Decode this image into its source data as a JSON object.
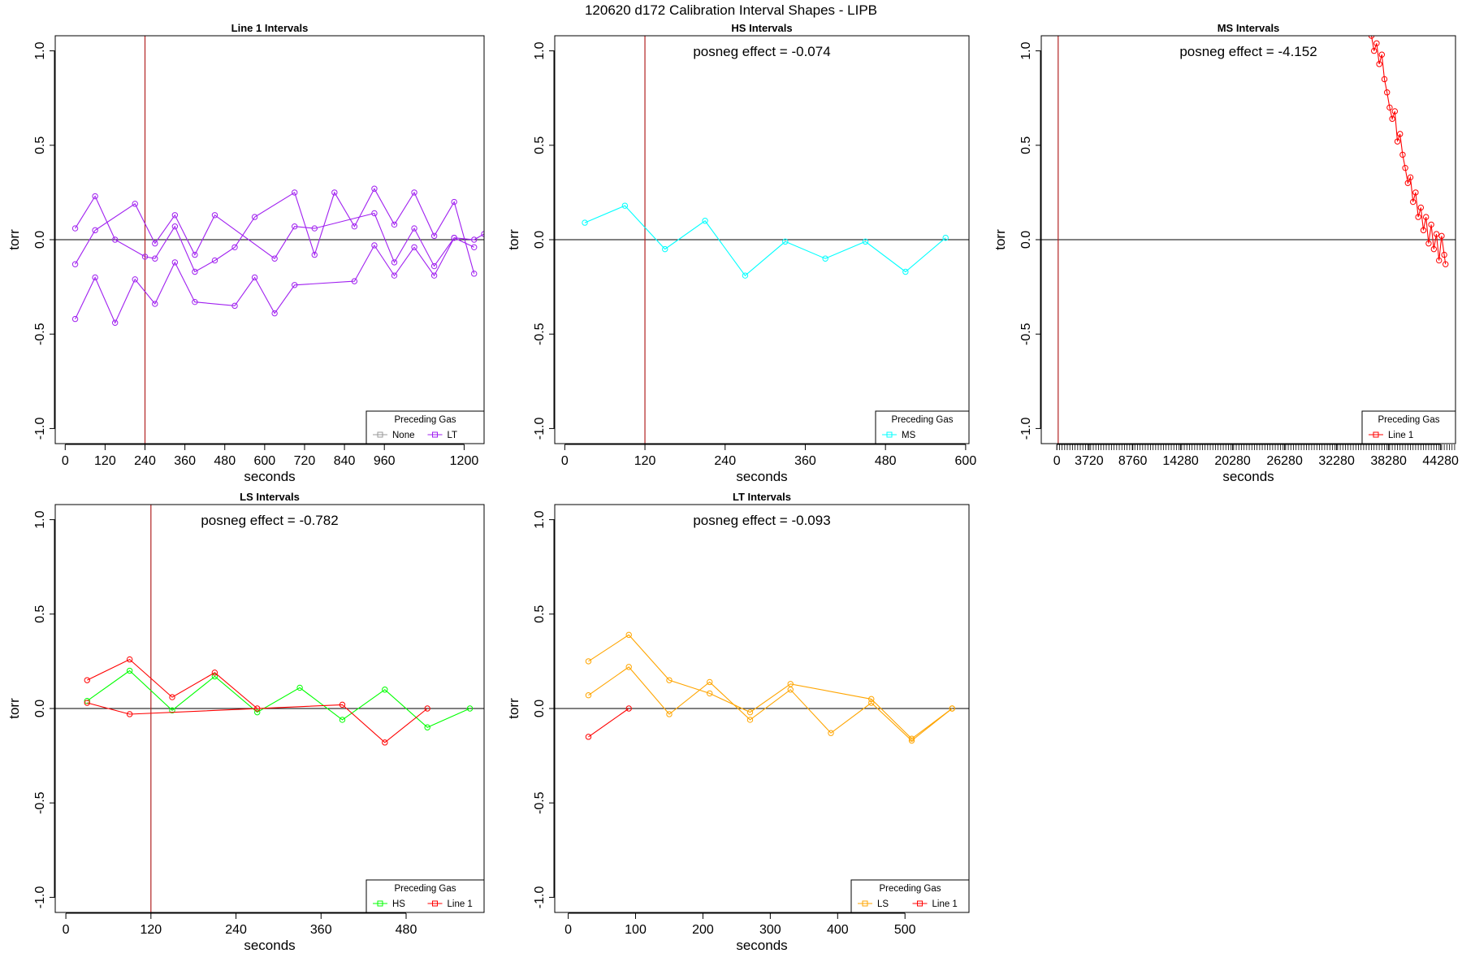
{
  "figure_title": "120620   d172   Calibration Interval Shapes - LIPB",
  "colors": {
    "vline": "#b22222",
    "zero_line": "#000000",
    "none": "#999999",
    "lt": "#a020f0",
    "ms": "#00ffff",
    "line1": "#ff0000",
    "hs": "#00ff00",
    "ls": "#ffa500"
  },
  "chart_data": [
    {
      "id": "line1",
      "type": "line",
      "title": "Line 1 Intervals",
      "xlabel": "seconds",
      "ylabel": "torr",
      "xlim": [
        -30,
        1260
      ],
      "ylim": [
        -1.08,
        1.08
      ],
      "xticks": [
        0,
        120,
        240,
        360,
        480,
        600,
        720,
        840,
        960,
        1200
      ],
      "yticks": [
        -1.0,
        -0.5,
        0.0,
        0.5,
        1.0
      ],
      "ytick_labels": [
        "-1.0",
        "-0.5",
        "0.0",
        "0.5",
        "1.0"
      ],
      "vline_x": 240,
      "annotation": "",
      "legend_title": "Preceding Gas",
      "legend_entries": [
        {
          "label": "None",
          "color": "#999999"
        },
        {
          "label": "LT",
          "color": "#a020f0"
        }
      ],
      "series": [
        {
          "name": "LT",
          "color": "#a020f0",
          "x": [
            30,
            90,
            150,
            240,
            270,
            330,
            390,
            450,
            510,
            570,
            690,
            750,
            810,
            870,
            930,
            990,
            1050,
            1110,
            1170,
            1230
          ],
          "y": [
            0.06,
            0.23,
            0.0,
            -0.09,
            -0.1,
            0.07,
            -0.17,
            -0.11,
            -0.04,
            0.12,
            0.25,
            -0.08,
            0.25,
            0.07,
            0.27,
            0.08,
            0.25,
            0.02,
            0.2,
            -0.18
          ]
        },
        {
          "name": "LT",
          "color": "#a020f0",
          "x": [
            30,
            90,
            210,
            270,
            330,
            390,
            450,
            630,
            690,
            750,
            930,
            990,
            1050,
            1110,
            1170,
            1230,
            1260
          ],
          "y": [
            -0.13,
            0.05,
            0.19,
            -0.02,
            0.13,
            -0.08,
            0.13,
            -0.1,
            0.07,
            0.06,
            0.14,
            -0.12,
            0.06,
            -0.14,
            0.01,
            0.0,
            0.03
          ]
        },
        {
          "name": "LT",
          "color": "#a020f0",
          "x": [
            30,
            90,
            150,
            210,
            270,
            330,
            390,
            510,
            570,
            630,
            690,
            870,
            930,
            990,
            1050,
            1110,
            1170,
            1230
          ],
          "y": [
            -0.42,
            -0.2,
            -0.44,
            -0.21,
            -0.34,
            -0.12,
            -0.33,
            -0.35,
            -0.2,
            -0.39,
            -0.24,
            -0.22,
            -0.03,
            -0.19,
            -0.04,
            -0.19,
            0.01,
            -0.04
          ]
        }
      ]
    },
    {
      "id": "hs",
      "type": "line",
      "title": "HS Intervals",
      "xlabel": "seconds",
      "ylabel": "torr",
      "xlim": [
        -15,
        605
      ],
      "ylim": [
        -1.08,
        1.08
      ],
      "xticks": [
        0,
        120,
        240,
        360,
        480,
        600
      ],
      "yticks": [
        -1.0,
        -0.5,
        0.0,
        0.5,
        1.0
      ],
      "ytick_labels": [
        "-1.0",
        "-0.5",
        "0.0",
        "0.5",
        "1.0"
      ],
      "vline_x": 120,
      "annotation": "posneg effect = -0.074",
      "legend_title": "Preceding Gas",
      "legend_entries": [
        {
          "label": "MS",
          "color": "#00ffff"
        }
      ],
      "series": [
        {
          "name": "MS",
          "color": "#00ffff",
          "x": [
            30,
            90,
            150,
            210,
            270,
            330,
            390,
            450,
            510,
            570
          ],
          "y": [
            0.09,
            0.18,
            -0.05,
            0.1,
            -0.19,
            -0.01,
            -0.1,
            -0.01,
            -0.17,
            0.01
          ]
        }
      ]
    },
    {
      "id": "ms",
      "type": "line",
      "title": "MS Intervals",
      "xlabel": "seconds",
      "ylabel": "torr",
      "xlim": [
        -1800,
        46000
      ],
      "ylim": [
        -1.08,
        1.08
      ],
      "xticks": [
        0,
        3720,
        8760,
        14280,
        20280,
        26280,
        32280,
        38280,
        44280
      ],
      "yticks": [
        -1.0,
        -0.5,
        0.0,
        0.5,
        1.0
      ],
      "ytick_labels": [
        "-1.0",
        "-0.5",
        "0.0",
        "0.5",
        "1.0"
      ],
      "minor_tick_step": 300,
      "vline_x": 150,
      "annotation": "posneg effect = -4.152",
      "legend_title": "Preceding Gas",
      "legend_entries": [
        {
          "label": "Line 1",
          "color": "#ff0000"
        }
      ],
      "series": [
        {
          "name": "Line 1",
          "color": "#ff0000",
          "x": [
            36300,
            36600,
            36900,
            37200,
            37500,
            37800,
            38100,
            38400,
            38700,
            39000,
            39300,
            39600,
            39900,
            40200,
            40500,
            40800,
            41100,
            41400,
            41700,
            42000,
            42300,
            42600,
            42900,
            43200,
            43500,
            43800,
            44100,
            44400,
            44700,
            44850
          ],
          "y": [
            1.08,
            1.0,
            1.04,
            0.93,
            0.98,
            0.85,
            0.78,
            0.7,
            0.64,
            0.68,
            0.52,
            0.56,
            0.45,
            0.38,
            0.3,
            0.33,
            0.2,
            0.25,
            0.12,
            0.17,
            0.05,
            0.12,
            -0.02,
            0.08,
            -0.05,
            0.03,
            -0.11,
            0.02,
            -0.08,
            -0.13
          ]
        }
      ]
    },
    {
      "id": "ls",
      "type": "line",
      "title": "LS Intervals",
      "xlabel": "seconds",
      "ylabel": "torr",
      "xlim": [
        -15,
        590
      ],
      "ylim": [
        -1.08,
        1.08
      ],
      "xticks": [
        0,
        120,
        240,
        360,
        480
      ],
      "yticks": [
        -1.0,
        -0.5,
        0.0,
        0.5,
        1.0
      ],
      "ytick_labels": [
        "-1.0",
        "-0.5",
        "0.0",
        "0.5",
        "1.0"
      ],
      "vline_x": 120,
      "annotation": "posneg effect = -0.782",
      "legend_title": "Preceding Gas",
      "legend_entries": [
        {
          "label": "HS",
          "color": "#00ff00"
        },
        {
          "label": "Line 1",
          "color": "#ff0000"
        }
      ],
      "series": [
        {
          "name": "HS",
          "color": "#00ff00",
          "x": [
            30,
            90,
            150,
            210,
            270,
            330,
            390,
            450,
            510,
            570
          ],
          "y": [
            0.04,
            0.2,
            -0.01,
            0.17,
            -0.02,
            0.11,
            -0.06,
            0.1,
            -0.1,
            0.0
          ]
        },
        {
          "name": "Line 1",
          "color": "#ff0000",
          "x": [
            30,
            90,
            150,
            210,
            270
          ],
          "y": [
            0.15,
            0.26,
            0.06,
            0.19,
            0.0
          ]
        },
        {
          "name": "Line 1",
          "color": "#ff0000",
          "x": [
            30,
            90,
            390,
            450,
            510
          ],
          "y": [
            0.03,
            -0.03,
            0.02,
            -0.18,
            0.0
          ]
        }
      ]
    },
    {
      "id": "lt",
      "type": "line",
      "title": "LT Intervals",
      "xlabel": "seconds",
      "ylabel": "torr",
      "xlim": [
        -20,
        595
      ],
      "ylim": [
        -1.08,
        1.08
      ],
      "xticks": [
        0,
        100,
        200,
        300,
        400,
        500
      ],
      "yticks": [
        -1.0,
        -0.5,
        0.0,
        0.5,
        1.0
      ],
      "ytick_labels": [
        "-1.0",
        "-0.5",
        "0.0",
        "0.5",
        "1.0"
      ],
      "vline_x": null,
      "annotation": "posneg effect = -0.093",
      "legend_title": "Preceding Gas",
      "legend_entries": [
        {
          "label": "LS",
          "color": "#ffa500"
        },
        {
          "label": "Line 1",
          "color": "#ff0000"
        }
      ],
      "series": [
        {
          "name": "LS",
          "color": "#ffa500",
          "x": [
            30,
            90,
            150,
            210,
            270,
            330,
            450,
            510,
            570
          ],
          "y": [
            0.25,
            0.39,
            0.15,
            0.08,
            -0.02,
            0.13,
            0.05,
            -0.16,
            0.0
          ]
        },
        {
          "name": "LS",
          "color": "#ffa500",
          "x": [
            30,
            90,
            150,
            210,
            270,
            330,
            390,
            450,
            510,
            570
          ],
          "y": [
            0.07,
            0.22,
            -0.03,
            0.14,
            -0.06,
            0.1,
            -0.13,
            0.03,
            -0.17,
            0.0
          ]
        },
        {
          "name": "Line 1",
          "color": "#ff0000",
          "x": [
            30,
            90
          ],
          "y": [
            -0.15,
            0.0
          ]
        }
      ]
    }
  ]
}
